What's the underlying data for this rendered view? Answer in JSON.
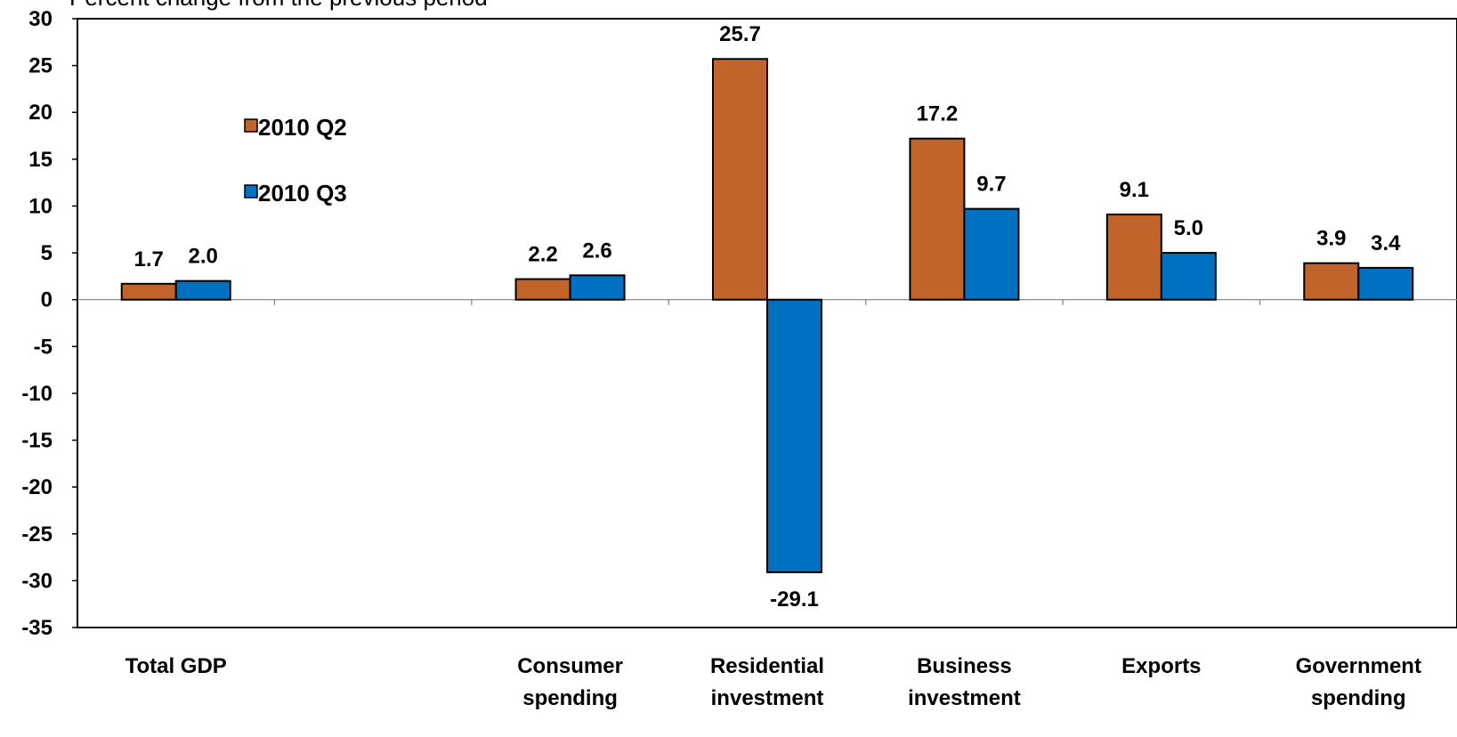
{
  "chart_data": {
    "type": "bar",
    "subtitle": "Percent change from the previous period",
    "categories": [
      [
        "Total GDP"
      ],
      [
        ""
      ],
      [
        "Consumer",
        "spending"
      ],
      [
        "Residential",
        "investment"
      ],
      [
        "Business",
        "investment"
      ],
      [
        "Exports"
      ],
      [
        "Government",
        "spending"
      ]
    ],
    "series": [
      {
        "name": "2010 Q2",
        "color": "#C0642C",
        "values": [
          1.7,
          null,
          2.2,
          25.7,
          17.2,
          9.1,
          3.9
        ],
        "labels": [
          "1.7",
          "",
          "2.2",
          "25.7",
          "17.2",
          "9.1",
          "3.9"
        ]
      },
      {
        "name": "2010 Q3",
        "color": "#0070C0",
        "values": [
          2.0,
          null,
          2.6,
          -29.1,
          9.7,
          5.0,
          3.4
        ],
        "labels": [
          "2.0",
          "",
          "2.6",
          "-29.1",
          "9.7",
          "5.0",
          "3.4"
        ]
      }
    ],
    "ylim": [
      -35,
      30
    ],
    "yticks": [
      30,
      25,
      20,
      15,
      10,
      5,
      0,
      -5,
      -10,
      -15,
      -20,
      -25,
      -30,
      -35
    ],
    "legend_position": "upper-left"
  }
}
